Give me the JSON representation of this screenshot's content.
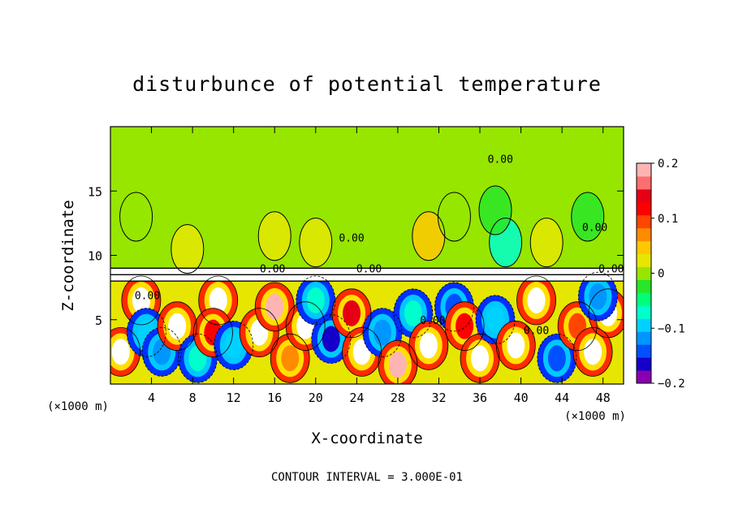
{
  "chart_data": {
    "type": "heatmap",
    "title": "disturbunce of potential temperature",
    "xlabel": "X-coordinate",
    "ylabel": "Z-coordinate",
    "x_unit_label_left": "(×1000 m)",
    "x_unit_label_right": "(×1000 m)",
    "footer": "CONTOUR INTERVAL = 3.000E-01",
    "xlim": [
      0,
      50
    ],
    "ylim": [
      0,
      20
    ],
    "xticks": [
      4,
      8,
      12,
      16,
      20,
      24,
      28,
      32,
      36,
      40,
      44,
      48
    ],
    "xtick_labels": [
      "4",
      "8",
      "12",
      "16",
      "20",
      "24",
      "28",
      "32",
      "36",
      "40",
      "44",
      "48"
    ],
    "yticks": [
      5,
      10,
      15
    ],
    "ytick_labels": [
      "5",
      "10",
      "15"
    ],
    "colorbar": {
      "vmin": -0.2,
      "vmax": 0.2,
      "tick_values": [
        0.2,
        0.1,
        0,
        -0.1,
        -0.2
      ],
      "tick_labels": [
        "0.2",
        "0.1",
        "0",
        "−0.1",
        "−0.2"
      ],
      "colors": [
        "#8a00b0",
        "#1400c8",
        "#0050ff",
        "#0096ff",
        "#00d2ff",
        "#00ffcc",
        "#00ff78",
        "#28e628",
        "#96e600",
        "#e6e600",
        "#ffc800",
        "#ff8c00",
        "#ff4600",
        "#ff0000",
        "#e60014",
        "#ff6e6e",
        "#ffb4b4"
      ]
    },
    "contour_labels": [
      {
        "text": "0.00",
        "x": 23.5,
        "y": 11.4
      },
      {
        "text": "0.00",
        "x": 38.0,
        "y": 17.5
      },
      {
        "text": "0.00",
        "x": 47.2,
        "y": 12.2
      },
      {
        "text": "0.00",
        "x": 15.8,
        "y": 9.0
      },
      {
        "text": "0.00",
        "x": 25.2,
        "y": 9.0
      },
      {
        "text": "0.00",
        "x": 48.8,
        "y": 9.0
      },
      {
        "text": "0.00",
        "x": 3.6,
        "y": 6.9
      },
      {
        "text": "0.00",
        "x": 31.4,
        "y": 5.0
      },
      {
        "text": "0.00",
        "x": 41.5,
        "y": 4.2
      }
    ],
    "upper_layer": {
      "z_range": [
        9.0,
        20.0
      ],
      "base_value": 0.0
    },
    "inversion_band": {
      "z_range": [
        8.0,
        9.0
      ]
    },
    "upper_anomalies": [
      {
        "x": 2.5,
        "z": 13.0,
        "value": 0.01
      },
      {
        "x": 7.5,
        "z": 10.5,
        "value": 0.02
      },
      {
        "x": 16.0,
        "z": 11.5,
        "value": 0.015
      },
      {
        "x": 20.0,
        "z": 11.0,
        "value": 0.03
      },
      {
        "x": 31.0,
        "z": 11.5,
        "value": 0.04
      },
      {
        "x": 33.5,
        "z": 13.0,
        "value": 0.01
      },
      {
        "x": 38.5,
        "z": 11.0,
        "value": -0.08
      },
      {
        "x": 37.5,
        "z": 13.5,
        "value": -0.03
      },
      {
        "x": 42.5,
        "z": 11.0,
        "value": 0.03
      },
      {
        "x": 46.5,
        "z": 13.0,
        "value": -0.02
      }
    ],
    "lower_layer": {
      "z_range": [
        0.0,
        8.0
      ],
      "regions": [
        {
          "x": 1.0,
          "z": 2.5,
          "value": 0.3
        },
        {
          "x": 3.0,
          "z": 6.5,
          "value": 0.3
        },
        {
          "x": 3.5,
          "z": 4.0,
          "value": -0.09
        },
        {
          "x": 5.0,
          "z": 2.5,
          "value": -0.12
        },
        {
          "x": 6.5,
          "z": 4.5,
          "value": 0.3
        },
        {
          "x": 8.5,
          "z": 2.0,
          "value": -0.08
        },
        {
          "x": 10.5,
          "z": 6.5,
          "value": 0.3
        },
        {
          "x": 10.0,
          "z": 4.0,
          "value": 0.12
        },
        {
          "x": 12.0,
          "z": 3.0,
          "value": -0.1
        },
        {
          "x": 14.5,
          "z": 4.0,
          "value": 0.3
        },
        {
          "x": 16.0,
          "z": 6.0,
          "value": 0.2
        },
        {
          "x": 17.5,
          "z": 2.0,
          "value": 0.08
        },
        {
          "x": 19.0,
          "z": 4.5,
          "value": 0.3
        },
        {
          "x": 20.0,
          "z": 6.5,
          "value": -0.08
        },
        {
          "x": 21.5,
          "z": 3.5,
          "value": -0.17
        },
        {
          "x": 23.5,
          "z": 5.5,
          "value": 0.15
        },
        {
          "x": 24.5,
          "z": 2.5,
          "value": 0.3
        },
        {
          "x": 26.5,
          "z": 4.0,
          "value": -0.12
        },
        {
          "x": 28.0,
          "z": 1.5,
          "value": 0.2
        },
        {
          "x": 29.5,
          "z": 5.5,
          "value": -0.06
        },
        {
          "x": 31.0,
          "z": 3.0,
          "value": 0.3
        },
        {
          "x": 33.5,
          "z": 6.0,
          "value": -0.15
        },
        {
          "x": 34.5,
          "z": 4.5,
          "value": 0.12
        },
        {
          "x": 36.0,
          "z": 2.0,
          "value": 0.3
        },
        {
          "x": 37.5,
          "z": 5.0,
          "value": -0.1
        },
        {
          "x": 39.5,
          "z": 3.0,
          "value": 0.3
        },
        {
          "x": 41.5,
          "z": 6.5,
          "value": 0.3
        },
        {
          "x": 43.5,
          "z": 2.0,
          "value": -0.14
        },
        {
          "x": 45.5,
          "z": 4.5,
          "value": 0.1
        },
        {
          "x": 47.0,
          "z": 2.5,
          "value": 0.3
        },
        {
          "x": 48.5,
          "z": 5.5,
          "value": 0.3
        },
        {
          "x": 47.5,
          "z": 6.8,
          "value": -0.12
        }
      ]
    }
  }
}
